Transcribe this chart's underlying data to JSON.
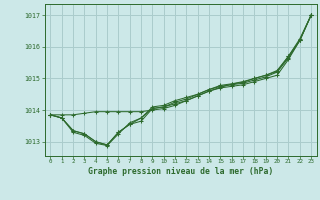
{
  "title": "Graphe pression niveau de la mer (hPa)",
  "background_color": "#cce8e8",
  "grid_color": "#aacccc",
  "line_color": "#2d6a2d",
  "xlim": [
    -0.5,
    23.5
  ],
  "ylim": [
    1012.55,
    1017.35
  ],
  "yticks": [
    1013,
    1014,
    1015,
    1016,
    1017
  ],
  "xticks": [
    0,
    1,
    2,
    3,
    4,
    5,
    6,
    7,
    8,
    9,
    10,
    11,
    12,
    13,
    14,
    15,
    16,
    17,
    18,
    19,
    20,
    21,
    22,
    23
  ],
  "series": [
    [
      1013.85,
      1013.75,
      1013.35,
      1013.25,
      1013.0,
      1012.9,
      1013.3,
      1013.55,
      1013.65,
      1014.05,
      1014.1,
      1014.2,
      1014.3,
      1014.45,
      1014.6,
      1014.7,
      1014.75,
      1014.8,
      1014.9,
      1015.0,
      1015.1,
      1015.6,
      1016.2,
      1017.0
    ],
    [
      1013.85,
      1013.75,
      1013.35,
      1013.25,
      1013.0,
      1012.9,
      1013.3,
      1013.55,
      1013.75,
      1014.1,
      1014.15,
      1014.3,
      1014.4,
      1014.5,
      1014.65,
      1014.75,
      1014.8,
      1014.85,
      1014.95,
      1015.05,
      1015.2,
      1015.65,
      1016.2,
      1017.0
    ],
    [
      1013.85,
      1013.75,
      1013.3,
      1013.2,
      1012.95,
      1012.88,
      1013.25,
      1013.6,
      1013.75,
      1014.05,
      1014.1,
      1014.25,
      1014.35,
      1014.5,
      1014.65,
      1014.78,
      1014.83,
      1014.9,
      1015.0,
      1015.1,
      1015.25,
      1015.7,
      1016.2,
      1017.0
    ],
    [
      1013.85,
      1013.85,
      1013.85,
      1013.9,
      1013.95,
      1013.95,
      1013.95,
      1013.95,
      1013.95,
      1014.0,
      1014.05,
      1014.15,
      1014.3,
      1014.45,
      1014.6,
      1014.72,
      1014.82,
      1014.88,
      1015.0,
      1015.1,
      1015.22,
      1015.7,
      1016.25,
      1017.0
    ]
  ]
}
